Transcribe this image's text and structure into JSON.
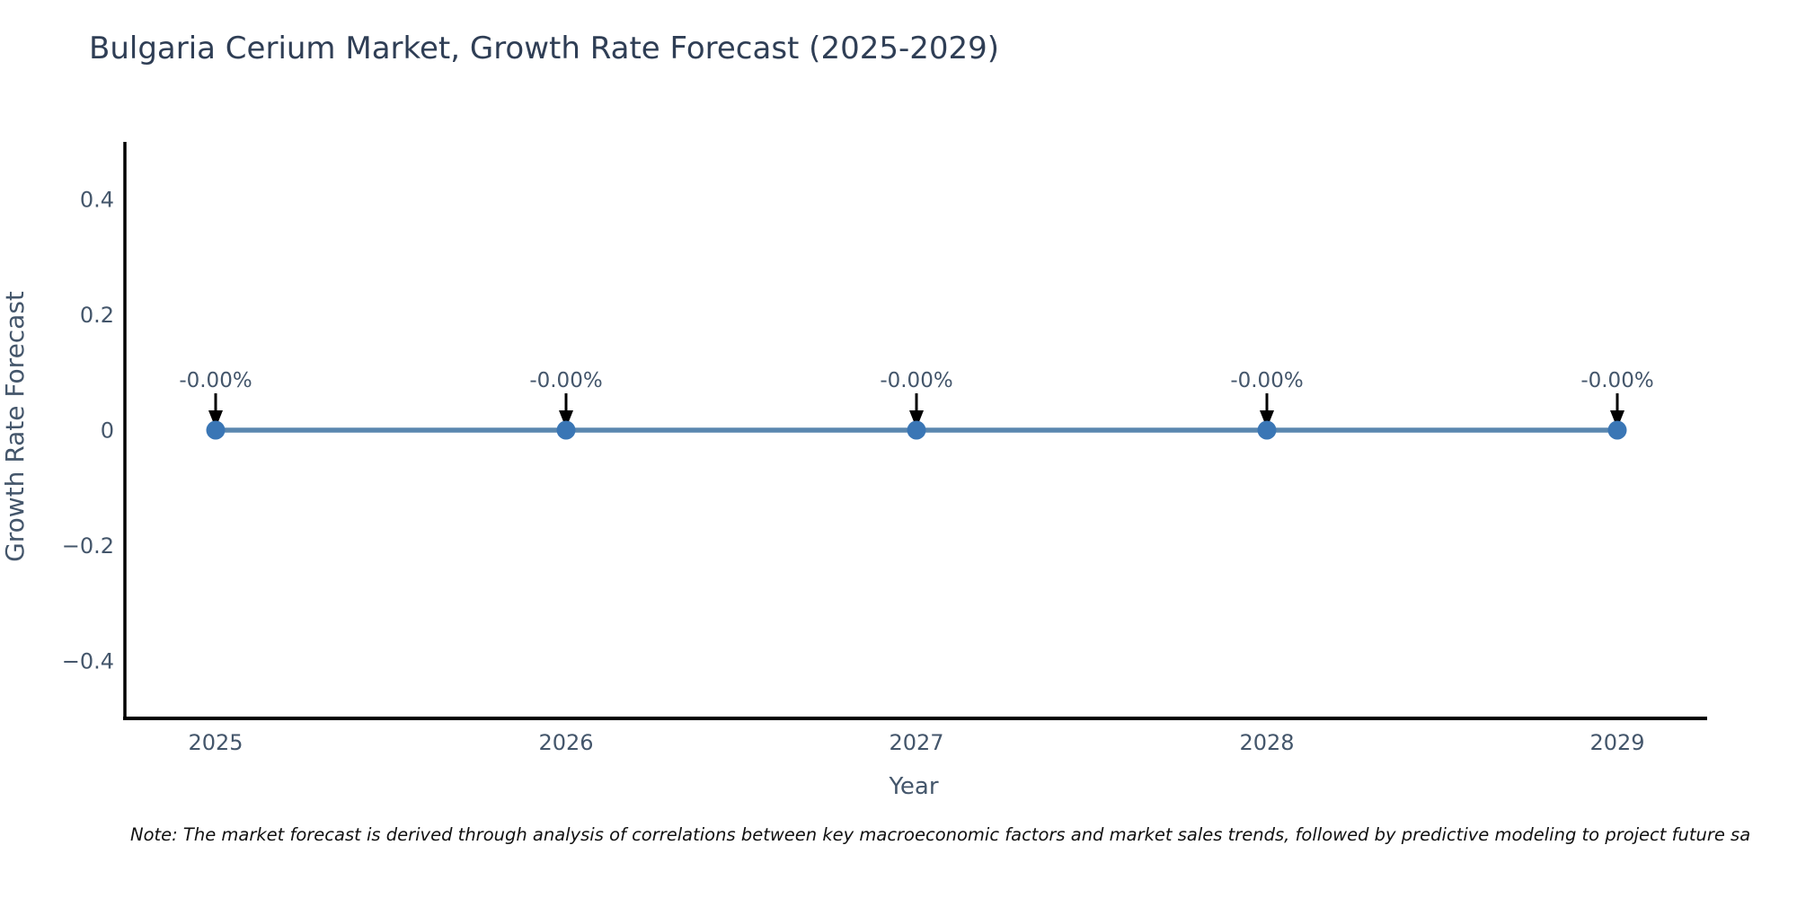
{
  "chart_data": {
    "type": "line",
    "title": "Bulgaria Cerium Market, Growth Rate Forecast (2025-2029)",
    "xlabel": "Year",
    "ylabel": "Growth Rate Forecast",
    "x": [
      "2025",
      "2026",
      "2027",
      "2028",
      "2029"
    ],
    "series": [
      {
        "name": "Growth Rate Forecast",
        "values": [
          0,
          0,
          0,
          0,
          0
        ]
      }
    ],
    "point_labels": [
      "-0.00%",
      "-0.00%",
      "-0.00%",
      "-0.00%",
      "-0.00%"
    ],
    "ylim": [
      -0.5,
      0.5
    ],
    "yticks": [
      {
        "value": 0.4,
        "label": "0.4"
      },
      {
        "value": 0.2,
        "label": "0.2"
      },
      {
        "value": 0,
        "label": "0"
      },
      {
        "value": -0.2,
        "label": "−0.2"
      },
      {
        "value": -0.4,
        "label": "−0.4"
      }
    ],
    "grid": false,
    "legend": "none",
    "colors": {
      "title": "#2f3e55",
      "tick_label": "#44566b",
      "axis_label": "#44566b",
      "annotation_text": "#44566b",
      "line": "#5a87af",
      "marker": "#3a76b5",
      "axis": "#000000",
      "arrow": "#000000"
    }
  },
  "note": {
    "text": "Note: The market forecast is derived through analysis of correlations between key macroeconomic factors and market sales trends, followed by predictive modeling to project future sa",
    "color": "#111111"
  }
}
